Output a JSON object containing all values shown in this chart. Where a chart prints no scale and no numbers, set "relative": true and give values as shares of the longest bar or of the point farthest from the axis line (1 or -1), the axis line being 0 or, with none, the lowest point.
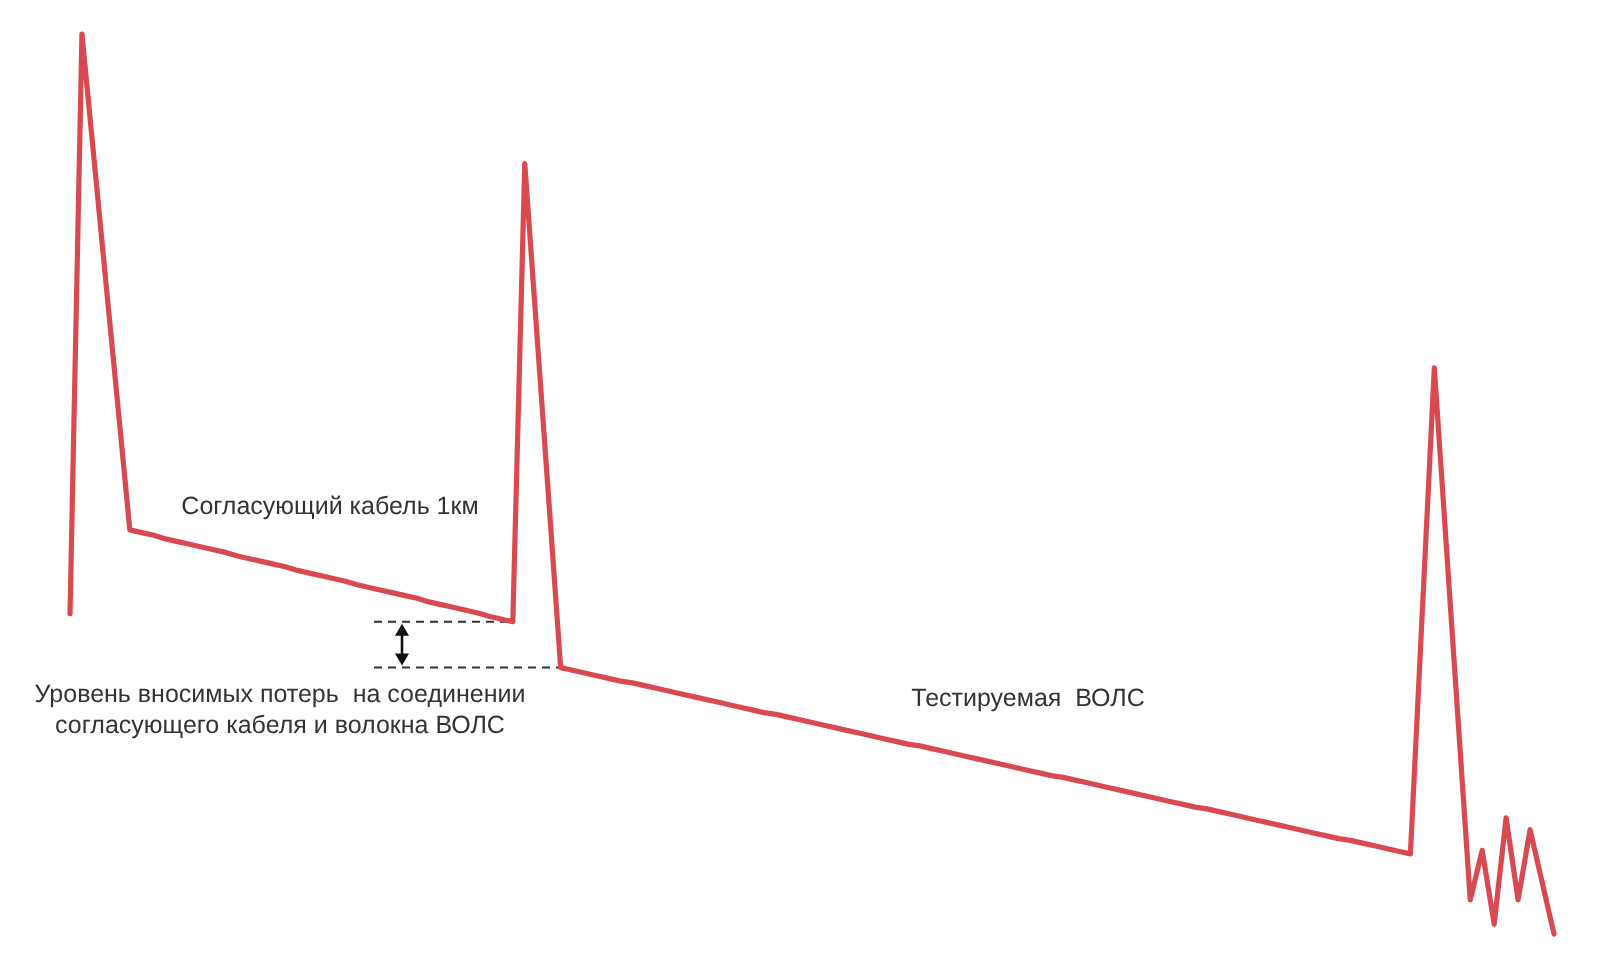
{
  "chart_data": {
    "type": "line",
    "relative": true,
    "categories": [
      null,
      null,
      null,
      null,
      null,
      null,
      null,
      null,
      null,
      null,
      null,
      null,
      null,
      null,
      null,
      null,
      null,
      null,
      null,
      null,
      null,
      null,
      null,
      null,
      null,
      null,
      null,
      null,
      null,
      null,
      null,
      null,
      null,
      null,
      null,
      null,
      null,
      null,
      null,
      null,
      null,
      null,
      null,
      null,
      null,
      null,
      null,
      null,
      null,
      null,
      null,
      null,
      null,
      null,
      null,
      null,
      null,
      null,
      null,
      null,
      null,
      null,
      null,
      null,
      null,
      null,
      null,
      null,
      null,
      null,
      null,
      null,
      null,
      null,
      null,
      null,
      null,
      null,
      null,
      null,
      null,
      null,
      null,
      null,
      null,
      null,
      null,
      null,
      null,
      null,
      null,
      null,
      null,
      null,
      null,
      null,
      null,
      null,
      null,
      null,
      null,
      null,
      null,
      null,
      null,
      null,
      null,
      null,
      null,
      null,
      null,
      null,
      null,
      null,
      null,
      null,
      null,
      null,
      null,
      null,
      null,
      null,
      null,
      null,
      null
    ],
    "series": [
      {
        "color": "#d84a50",
        "values": [
          0.356,
          1,
          0.862,
          0.724,
          0.587,
          0.449,
          0.446,
          0.443,
          0.439,
          0.436,
          0.433,
          0.43,
          0.427,
          0.424,
          0.42,
          0.417,
          0.414,
          0.411,
          0.408,
          0.404,
          0.401,
          0.398,
          0.395,
          0.392,
          0.388,
          0.385,
          0.382,
          0.379,
          0.376,
          0.373,
          0.369,
          0.366,
          0.363,
          0.36,
          0.357,
          0.353,
          0.35,
          0.347,
          0.856,
          0.669,
          0.483,
          0.296,
          0.293,
          0.29,
          0.287,
          0.284,
          0.281,
          0.279,
          0.276,
          0.273,
          0.27,
          0.267,
          0.264,
          0.261,
          0.258,
          0.255,
          0.252,
          0.249,
          0.246,
          0.244,
          0.241,
          0.238,
          0.235,
          0.232,
          0.229,
          0.226,
          0.223,
          0.22,
          0.217,
          0.214,
          0.211,
          0.209,
          0.206,
          0.203,
          0.2,
          0.197,
          0.194,
          0.191,
          0.188,
          0.185,
          0.182,
          0.179,
          0.176,
          0.174,
          0.171,
          0.168,
          0.165,
          0.162,
          0.159,
          0.156,
          0.153,
          0.15,
          0.147,
          0.144,
          0.141,
          0.139,
          0.136,
          0.133,
          0.13,
          0.127,
          0.124,
          0.121,
          0.118,
          0.115,
          0.112,
          0.109,
          0.106,
          0.104,
          0.101,
          0.098,
          0.095,
          0.092,
          0.089,
          0.359,
          0.629,
          0.432,
          0.235,
          0.038,
          0.093,
          0.011,
          0.129,
          0.038,
          0.116,
          0.058,
          0
        ]
      }
    ],
    "ref_lines": [
      {
        "axis": "y",
        "value": 0.347,
        "color": "#333333",
        "line_style": "dashed"
      },
      {
        "axis": "y",
        "value": 0.296,
        "color": "#333333",
        "line_style": "dashed"
      }
    ],
    "annotations": [
      "Согласующий кабель 1км",
      "Уровень вносимых потерь  на соединении\nсогласующего кабеля и волокна ВОЛС",
      "Тестируемая  ВОЛС"
    ]
  }
}
